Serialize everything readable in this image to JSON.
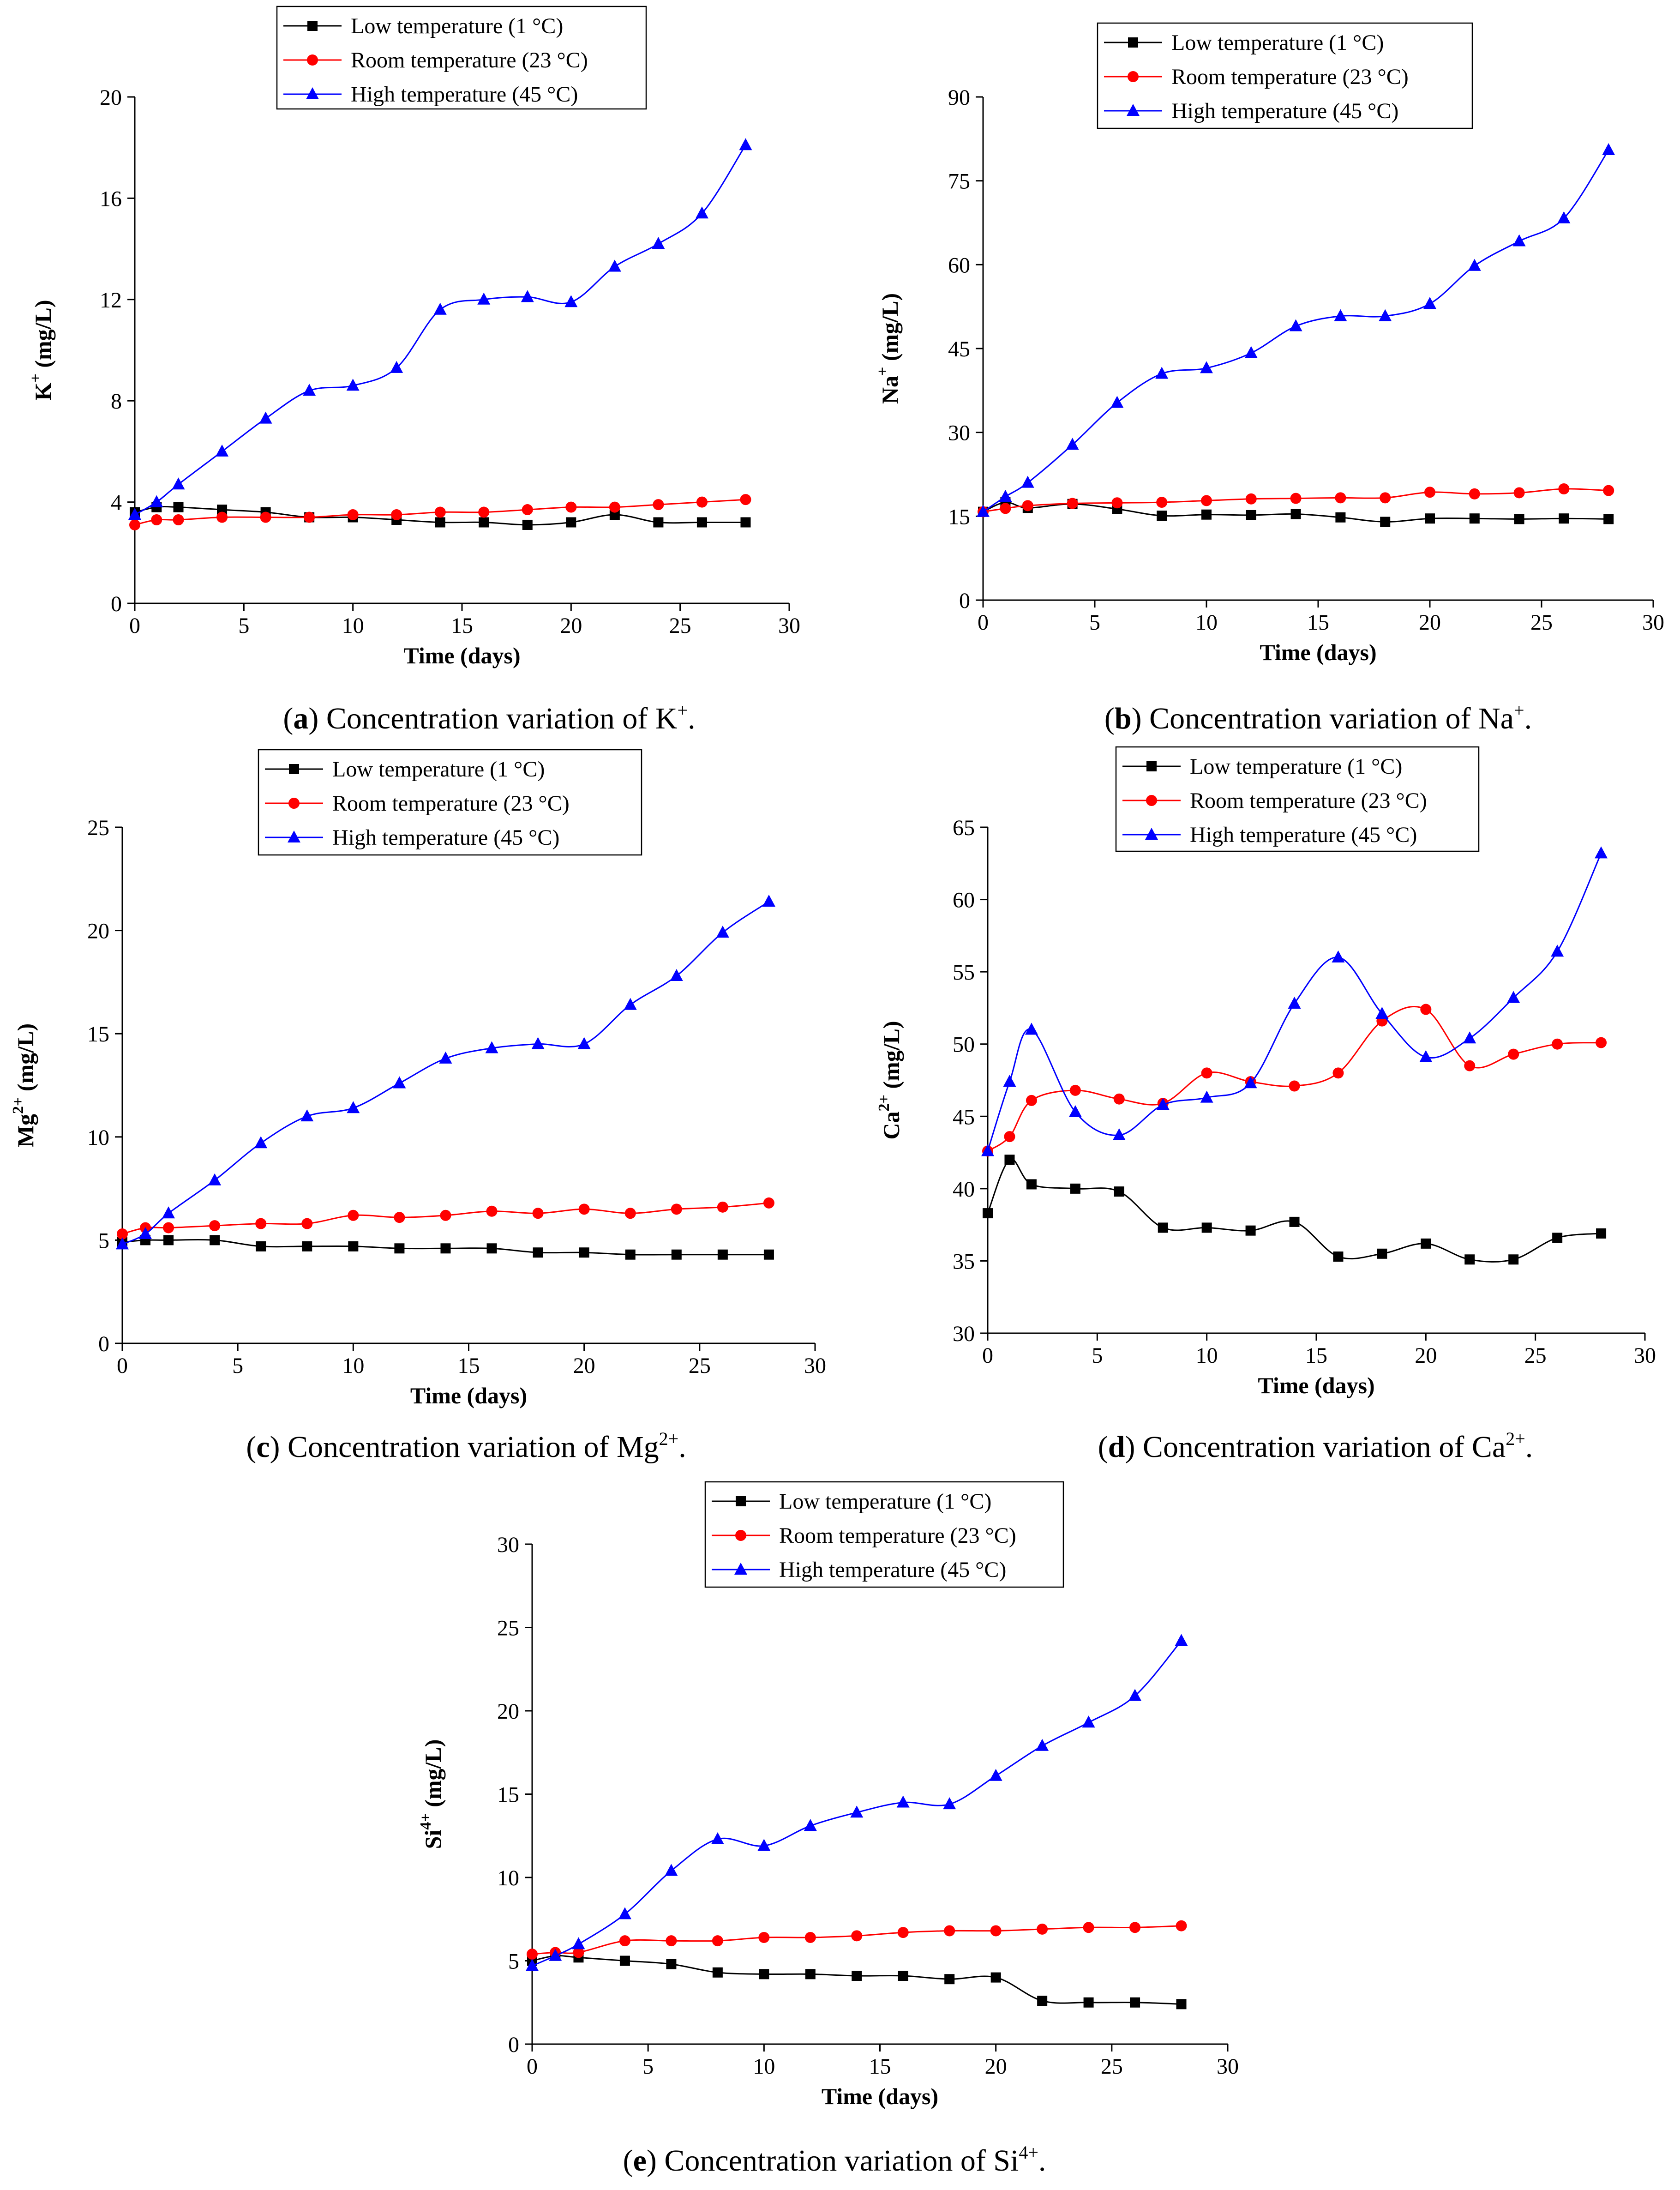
{
  "colors": {
    "low": "#000000",
    "room": "#ff0000",
    "high": "#0000ff",
    "axis": "#000000"
  },
  "chart_data": [
    {
      "id": "a",
      "type": "line",
      "ylabel_main": "K",
      "ylabel_sup": "+",
      "ylabel_unit": " (mg/L)",
      "xlabel": "Time (days)",
      "xlim": [
        0,
        30
      ],
      "ylim": [
        0,
        20
      ],
      "xticks": [
        0,
        5,
        10,
        15,
        20,
        25,
        30
      ],
      "yticks": [
        0,
        4,
        8,
        12,
        16,
        20
      ],
      "caption": {
        "letter": "a",
        "text": " Concentration variation of K",
        "sup": "+",
        "end": "."
      },
      "series": [
        {
          "name": "Low temperature (1 °C)",
          "key": "low",
          "marker": "square",
          "x": [
            0,
            1,
            2,
            4,
            6,
            8,
            10,
            12,
            14,
            16,
            18,
            20,
            22,
            24,
            26,
            28
          ],
          "y": [
            3.6,
            3.8,
            3.8,
            3.7,
            3.6,
            3.4,
            3.4,
            3.3,
            3.2,
            3.2,
            3.1,
            3.2,
            3.5,
            3.2,
            3.2,
            3.2
          ]
        },
        {
          "name": "Room temperature (23 °C)",
          "key": "room",
          "marker": "circle",
          "x": [
            0,
            1,
            2,
            4,
            6,
            8,
            10,
            12,
            14,
            16,
            18,
            20,
            22,
            24,
            26,
            28
          ],
          "y": [
            3.1,
            3.3,
            3.3,
            3.4,
            3.4,
            3.4,
            3.5,
            3.5,
            3.6,
            3.6,
            3.7,
            3.8,
            3.8,
            3.9,
            4.0,
            4.1
          ]
        },
        {
          "name": "High temperature (45 °C)",
          "key": "high",
          "marker": "triangle",
          "x": [
            0,
            1,
            2,
            4,
            6,
            8,
            10,
            12,
            14,
            16,
            18,
            20,
            22,
            24,
            26,
            28
          ],
          "y": [
            3.5,
            4.0,
            4.7,
            6.0,
            7.3,
            8.4,
            8.6,
            9.3,
            11.6,
            12.0,
            12.1,
            11.9,
            13.3,
            14.2,
            15.4,
            18.1
          ]
        }
      ]
    },
    {
      "id": "b",
      "type": "line",
      "ylabel_main": "Na",
      "ylabel_sup": "+",
      "ylabel_unit": " (mg/L)",
      "xlabel": "Time (days)",
      "xlim": [
        0,
        30
      ],
      "ylim": [
        0,
        90
      ],
      "xticks": [
        0,
        5,
        10,
        15,
        20,
        25,
        30
      ],
      "yticks": [
        0,
        15,
        30,
        45,
        60,
        75,
        90
      ],
      "caption": {
        "letter": "b",
        "text": " Concentration variation of Na",
        "sup": "+",
        "end": "."
      },
      "series": [
        {
          "name": "Low temperature (1 °C)",
          "key": "low",
          "marker": "square",
          "x": [
            0,
            1,
            2,
            4,
            6,
            8,
            10,
            12,
            14,
            16,
            18,
            20,
            22,
            24,
            26,
            28
          ],
          "y": [
            15.8,
            17.5,
            16.5,
            17.2,
            16.3,
            15.1,
            15.3,
            15.2,
            15.4,
            14.8,
            14.0,
            14.6,
            14.6,
            14.5,
            14.6,
            14.5
          ]
        },
        {
          "name": "Room temperature (23 °C)",
          "key": "room",
          "marker": "circle",
          "x": [
            0,
            1,
            2,
            4,
            6,
            8,
            10,
            12,
            14,
            16,
            18,
            20,
            22,
            24,
            26,
            28
          ],
          "y": [
            15.8,
            16.4,
            16.9,
            17.3,
            17.4,
            17.5,
            17.8,
            18.1,
            18.2,
            18.3,
            18.3,
            19.3,
            19.0,
            19.2,
            19.9,
            19.6
          ]
        },
        {
          "name": "High temperature (45 °C)",
          "key": "high",
          "marker": "triangle",
          "x": [
            0,
            1,
            2,
            4,
            6,
            8,
            10,
            12,
            14,
            16,
            18,
            20,
            22,
            24,
            26,
            28
          ],
          "y": [
            15.8,
            18.5,
            21.0,
            27.8,
            35.3,
            40.5,
            41.5,
            44.2,
            49.0,
            50.8,
            50.8,
            53.0,
            59.8,
            64.2,
            68.3,
            80.5
          ]
        }
      ]
    },
    {
      "id": "c",
      "type": "line",
      "ylabel_main": "Mg",
      "ylabel_sup": "2+",
      "ylabel_unit": " (mg/L)",
      "xlabel": "Time (days)",
      "xlim": [
        0,
        30
      ],
      "ylim": [
        0,
        25
      ],
      "xticks": [
        0,
        5,
        10,
        15,
        20,
        25,
        30
      ],
      "yticks": [
        0,
        5,
        10,
        15,
        20,
        25
      ],
      "caption": {
        "letter": "c",
        "text": " Concentration variation of Mg",
        "sup": "2+",
        "end": "."
      },
      "series": [
        {
          "name": "Low temperature (1 °C)",
          "key": "low",
          "marker": "square",
          "x": [
            0,
            1,
            2,
            4,
            6,
            8,
            10,
            12,
            14,
            16,
            18,
            20,
            22,
            24,
            26,
            28
          ],
          "y": [
            4.9,
            5.0,
            5.0,
            5.0,
            4.7,
            4.7,
            4.7,
            4.6,
            4.6,
            4.6,
            4.4,
            4.4,
            4.3,
            4.3,
            4.3,
            4.3
          ]
        },
        {
          "name": "Room temperature (23 °C)",
          "key": "room",
          "marker": "circle",
          "x": [
            0,
            1,
            2,
            4,
            6,
            8,
            10,
            12,
            14,
            16,
            18,
            20,
            22,
            24,
            26,
            28
          ],
          "y": [
            5.3,
            5.6,
            5.6,
            5.7,
            5.8,
            5.8,
            6.2,
            6.1,
            6.2,
            6.4,
            6.3,
            6.5,
            6.3,
            6.5,
            6.6,
            6.8
          ]
        },
        {
          "name": "High temperature (45 °C)",
          "key": "high",
          "marker": "triangle",
          "x": [
            0,
            1,
            2,
            4,
            6,
            8,
            10,
            12,
            14,
            16,
            18,
            20,
            22,
            24,
            26,
            28
          ],
          "y": [
            4.8,
            5.3,
            6.3,
            7.9,
            9.7,
            11.0,
            11.4,
            12.6,
            13.8,
            14.3,
            14.5,
            14.5,
            16.4,
            17.8,
            19.9,
            21.4
          ]
        }
      ]
    },
    {
      "id": "d",
      "type": "line",
      "ylabel_main": "Ca",
      "ylabel_sup": "2+",
      "ylabel_unit": " (mg/L)",
      "xlabel": "Time (days)",
      "xlim": [
        0,
        30
      ],
      "ylim": [
        30,
        65
      ],
      "xticks": [
        0,
        5,
        10,
        15,
        20,
        25,
        30
      ],
      "yticks": [
        30,
        35,
        40,
        45,
        50,
        55,
        60,
        65
      ],
      "caption": {
        "letter": "d",
        "text": " Concentration variation of Ca",
        "sup": "2+",
        "end": "."
      },
      "series": [
        {
          "name": "Low temperature (1 °C)",
          "key": "low",
          "marker": "square",
          "x": [
            0,
            1,
            2,
            4,
            6,
            8,
            10,
            12,
            14,
            16,
            18,
            20,
            22,
            24,
            26,
            28
          ],
          "y": [
            38.3,
            42.0,
            40.3,
            40.0,
            39.8,
            37.3,
            37.3,
            37.1,
            37.7,
            35.3,
            35.5,
            36.2,
            35.1,
            35.1,
            36.6,
            36.9
          ]
        },
        {
          "name": "Room temperature (23 °C)",
          "key": "room",
          "marker": "circle",
          "x": [
            0,
            1,
            2,
            4,
            6,
            8,
            10,
            12,
            14,
            16,
            18,
            20,
            22,
            24,
            26,
            28
          ],
          "y": [
            42.6,
            43.6,
            46.1,
            46.8,
            46.2,
            45.9,
            48.0,
            47.4,
            47.1,
            48.0,
            51.6,
            52.4,
            48.5,
            49.3,
            50.0,
            50.1
          ]
        },
        {
          "name": "High temperature (45 °C)",
          "key": "high",
          "marker": "triangle",
          "x": [
            0,
            1,
            2,
            4,
            6,
            8,
            10,
            12,
            14,
            16,
            18,
            20,
            22,
            24,
            26,
            28
          ],
          "y": [
            42.6,
            47.4,
            51.0,
            45.3,
            43.7,
            45.8,
            46.3,
            47.3,
            52.8,
            56.0,
            52.1,
            49.1,
            50.4,
            53.2,
            56.4,
            63.2
          ]
        }
      ]
    },
    {
      "id": "e",
      "type": "line",
      "ylabel_main": "Si",
      "ylabel_sup": "4+",
      "ylabel_unit": " (mg/L)",
      "xlabel": "Time (days)",
      "xlim": [
        0,
        30
      ],
      "ylim": [
        0,
        30
      ],
      "xticks": [
        0,
        5,
        10,
        15,
        20,
        25,
        30
      ],
      "yticks": [
        0,
        5,
        10,
        15,
        20,
        25,
        30
      ],
      "caption": {
        "letter": "e",
        "text": " Concentration variation of Si",
        "sup": "4+",
        "end": "."
      },
      "series": [
        {
          "name": "Low temperature (1 °C)",
          "key": "low",
          "marker": "square",
          "x": [
            0,
            1,
            2,
            4,
            6,
            8,
            10,
            12,
            14,
            16,
            18,
            20,
            22,
            24,
            26,
            28
          ],
          "y": [
            5.0,
            5.3,
            5.2,
            5.0,
            4.8,
            4.3,
            4.2,
            4.2,
            4.1,
            4.1,
            3.9,
            4.0,
            2.6,
            2.5,
            2.5,
            2.4
          ]
        },
        {
          "name": "Room temperature (23 °C)",
          "key": "room",
          "marker": "circle",
          "x": [
            0,
            1,
            2,
            4,
            6,
            8,
            10,
            12,
            14,
            16,
            18,
            20,
            22,
            24,
            26,
            28
          ],
          "y": [
            5.4,
            5.5,
            5.5,
            6.2,
            6.2,
            6.2,
            6.4,
            6.4,
            6.5,
            6.7,
            6.8,
            6.8,
            6.9,
            7.0,
            7.0,
            7.1
          ]
        },
        {
          "name": "High temperature (45 °C)",
          "key": "high",
          "marker": "triangle",
          "x": [
            0,
            1,
            2,
            4,
            6,
            8,
            10,
            12,
            14,
            16,
            18,
            20,
            22,
            24,
            26,
            28
          ],
          "y": [
            4.7,
            5.3,
            6.0,
            7.8,
            10.4,
            12.3,
            11.9,
            13.1,
            13.9,
            14.5,
            14.4,
            16.1,
            17.9,
            19.3,
            20.9,
            24.2
          ]
        }
      ]
    }
  ]
}
